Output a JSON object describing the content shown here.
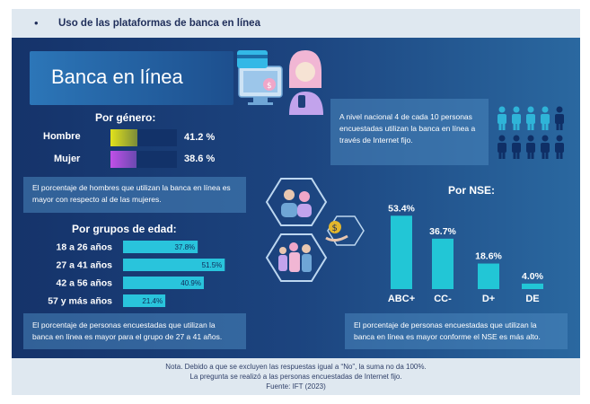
{
  "header": {
    "title": "Uso de las plataformas de banca en línea"
  },
  "banner": {
    "title": "Banca en línea"
  },
  "national_note": "A nivel nacional 4 de cada 10 personas encuestadas utilizan la banca en línea a través de Internet fijo.",
  "people_icons": {
    "highlighted": 4,
    "total": 10,
    "colors": {
      "highlight": "#2fb4d8",
      "rest": "#0f2f66"
    }
  },
  "gender": {
    "title": "Por género:",
    "items": [
      {
        "label": "Hombre",
        "value": 41.2,
        "display": "41.2 %"
      },
      {
        "label": "Mujer",
        "value": 38.6,
        "display": "38.6 %"
      }
    ],
    "note": "El porcentaje de hombres que utilizan la banca en línea es mayor con respecto al de las mujeres.",
    "colors": {
      "hombre": "#e2e21c",
      "mujer": "#c150e8"
    }
  },
  "age": {
    "title": "Por grupos de edad:",
    "note": "El porcentaje de personas encuestadas que utilizan la banca en línea es mayor para el grupo de 27 a 41 años."
  },
  "nse": {
    "title": "Por NSE:",
    "note": "El porcentaje de personas encuestadas que utilizan la banca en línea es mayor conforme el NSE es más alto."
  },
  "footer": {
    "line1": "Nota. Debido a que se excluyen las respuestas igual a “No”, la suma no da 100%.",
    "line2": "La pregunta se realizó a las personas encuestadas de Internet fijo.",
    "line3": "Fuente: IFT (2023)"
  },
  "icons": [
    "card-icon",
    "laptop-icon",
    "woman-with-phone-icon",
    "family-icon",
    "family-group-icon",
    "coin-hand-icon",
    "person-icon"
  ],
  "chart_data": [
    {
      "type": "bar",
      "title": "Por género:",
      "categories": [
        "Hombre",
        "Mujer"
      ],
      "values": [
        41.2,
        38.6
      ],
      "ylim": [
        0,
        100
      ]
    },
    {
      "type": "bar",
      "title": "Por grupos de edad:",
      "categories": [
        "18 a 26 años",
        "27 a 41 años",
        "42 a 56 años",
        "57 y más años"
      ],
      "values": [
        37.8,
        51.5,
        40.9,
        21.4
      ],
      "labels": [
        "37.8%",
        "51.5%",
        "40.9%",
        "21.4%"
      ],
      "ylim": [
        0,
        60
      ]
    },
    {
      "type": "bar",
      "title": "Por NSE:",
      "categories": [
        "ABC+",
        "CC-",
        "D+",
        "DE"
      ],
      "values": [
        53.4,
        36.7,
        18.6,
        4.0
      ],
      "labels": [
        "53.4%",
        "36.7%",
        "18.6%",
        "4.0%"
      ],
      "ylim": [
        0,
        60
      ]
    }
  ]
}
